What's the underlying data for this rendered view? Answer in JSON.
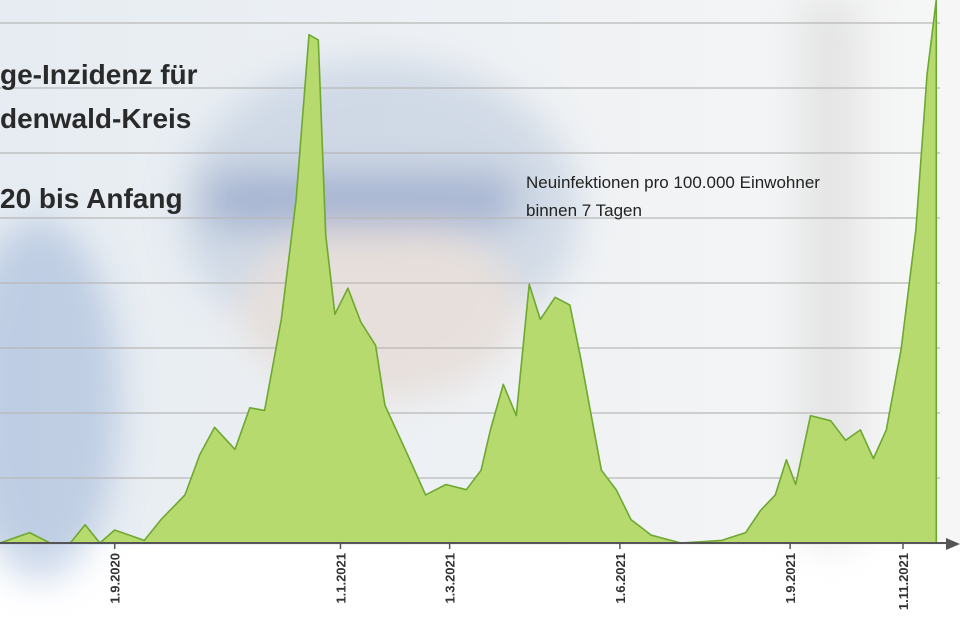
{
  "chart_data": {
    "type": "area",
    "title_lines": [
      "ge-Inzidenz für",
      "denwald-Kreis",
      "20 bis Anfang"
    ],
    "annotation_lines": [
      "Neuinfektionen pro 100.000 Einwohner",
      "binnen 7 Tagen"
    ],
    "x": [
      "2020-07-01",
      "2020-07-17",
      "2020-07-28",
      "2020-08-08",
      "2020-08-16",
      "2020-08-24",
      "2020-09-01",
      "2020-09-17",
      "2020-09-26",
      "2020-10-09",
      "2020-10-17",
      "2020-10-25",
      "2020-11-05",
      "2020-11-13",
      "2020-11-21",
      "2020-11-30",
      "2020-12-08",
      "2020-12-15",
      "2020-12-20",
      "2020-12-24",
      "2020-12-29",
      "2021-01-05",
      "2021-01-12",
      "2021-01-20",
      "2021-01-25",
      "2021-02-05",
      "2021-02-16",
      "2021-02-27",
      "2021-03-10",
      "2021-03-18",
      "2021-03-23",
      "2021-03-30",
      "2021-04-06",
      "2021-04-13",
      "2021-04-19",
      "2021-04-27",
      "2021-05-05",
      "2021-05-11",
      "2021-05-16",
      "2021-05-22",
      "2021-05-30",
      "2021-06-07",
      "2021-06-18",
      "2021-07-04",
      "2021-07-26",
      "2021-08-08",
      "2021-08-16",
      "2021-08-24",
      "2021-08-30",
      "2021-09-04",
      "2021-09-12",
      "2021-09-23",
      "2021-10-01",
      "2021-10-09",
      "2021-10-16",
      "2021-10-23",
      "2021-10-31",
      "2021-11-08",
      "2021-11-14",
      "2021-11-19"
    ],
    "series": [
      {
        "color": "#b6da6e",
        "line_color": "#6ea832",
        "values": [
          0,
          8,
          0,
          0,
          14,
          0,
          10,
          2,
          18,
          37,
          68,
          89,
          72,
          104,
          102,
          172,
          264,
          391,
          387,
          237,
          176,
          196,
          170,
          152,
          106,
          72,
          37,
          45,
          41,
          56,
          87,
          122,
          98,
          199,
          172,
          189,
          183,
          141,
          102,
          56,
          41,
          18,
          6,
          0,
          2,
          8,
          25,
          37,
          64,
          45,
          98,
          94,
          79,
          87,
          65,
          87,
          149,
          241,
          360,
          418
        ]
      }
    ],
    "xlim": [
      "2020-07-01",
      "2021-11-21"
    ],
    "xticks": [
      {
        "value": "2020-09-01",
        "label": "1.9.2020"
      },
      {
        "value": "2021-01-01",
        "label": "1.1.2021"
      },
      {
        "value": "2021-03-01",
        "label": "1.3.2021"
      },
      {
        "value": "2021-06-01",
        "label": "1.6.2021"
      },
      {
        "value": "2021-09-01",
        "label": "1.9.2021"
      },
      {
        "value": "2021-11-01",
        "label": "1.11.2021"
      }
    ],
    "ylim": [
      0,
      420
    ],
    "yticks": [
      0,
      50,
      100,
      150,
      200,
      250,
      300,
      350,
      400
    ],
    "grid": true
  }
}
